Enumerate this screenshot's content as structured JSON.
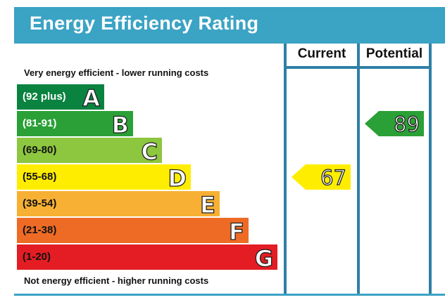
{
  "header": {
    "title": "Energy Efficiency Rating"
  },
  "columns": {
    "current": "Current",
    "potential": "Potential"
  },
  "notes": {
    "top": "Very energy efficient - lower running costs",
    "bottom": "Not energy efficient - higher running costs"
  },
  "chart_data": {
    "type": "bar",
    "title": "Energy Efficiency Rating",
    "bands": [
      {
        "letter": "A",
        "range": "(92 plus)",
        "color": "#0a8341",
        "text_color": "#ffffff"
      },
      {
        "letter": "B",
        "range": "(81-91)",
        "color": "#2aa036",
        "text_color": "#ffffff"
      },
      {
        "letter": "C",
        "range": "(69-80)",
        "color": "#8dc63f",
        "text_color": "#111111"
      },
      {
        "letter": "D",
        "range": "(55-68)",
        "color": "#ffed00",
        "text_color": "#111111"
      },
      {
        "letter": "E",
        "range": "(39-54)",
        "color": "#f7b034",
        "text_color": "#111111"
      },
      {
        "letter": "F",
        "range": "(21-38)",
        "color": "#ee6b25",
        "text_color": "#111111"
      },
      {
        "letter": "G",
        "range": "(1-20)",
        "color": "#e31d23",
        "text_color": "#111111"
      }
    ],
    "current": {
      "value": 67,
      "band": "D",
      "color": "#ffed00"
    },
    "potential": {
      "value": 89,
      "band": "B",
      "color": "#2aa036"
    }
  }
}
